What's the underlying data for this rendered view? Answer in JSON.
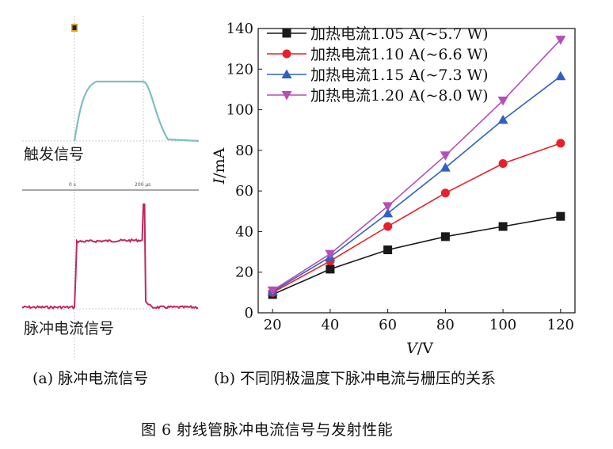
{
  "panel_a": {
    "trigger_label": "触发信号",
    "pulse_label": "脉冲电流信号",
    "time_zero": "0 s",
    "time_end": "200 µs",
    "caption": "(a) 脉冲电流信号",
    "colors": {
      "trigger_trace": "#7fbfbf",
      "pulse_trace": "#c0285a",
      "grid": "#bfbfbf"
    }
  },
  "panel_b": {
    "caption": "(b) 不同阴极温度下脉冲电流与栅压的关系"
  },
  "figure_caption": "图 6   射线管脉冲电流信号与发射性能",
  "chart_data": {
    "type": "line",
    "title": "",
    "xlabel_var": "V",
    "xlabel_unit": "/V",
    "ylabel_var": "I",
    "ylabel_unit": "/mA",
    "x": [
      20,
      40,
      60,
      80,
      100,
      120
    ],
    "xlim": [
      15,
      125
    ],
    "ylim": [
      0,
      140
    ],
    "xticks": [
      20,
      40,
      60,
      80,
      100,
      120
    ],
    "yticks": [
      0,
      20,
      40,
      60,
      80,
      100,
      120,
      140
    ],
    "legend_position": "top-left",
    "series": [
      {
        "name": "加热电流1.05 A(~5.7 W)",
        "color": "#1a1a1a",
        "marker": "square",
        "values": [
          9,
          21.5,
          31,
          37.5,
          42.5,
          47.5
        ]
      },
      {
        "name": "加热电流1.10 A(~6.6 W)",
        "color": "#e8202a",
        "marker": "circle",
        "values": [
          10,
          25.5,
          42.5,
          59,
          73.5,
          83.5
        ]
      },
      {
        "name": "加热电流1.15 A(~7.3 W)",
        "color": "#2f62c0",
        "marker": "triangle-up",
        "values": [
          10.5,
          27.5,
          49,
          71.5,
          95,
          116.5
        ]
      },
      {
        "name": "加热电流1.20 A(~8.0 W)",
        "color": "#b54fb8",
        "marker": "triangle-down",
        "values": [
          11,
          29,
          52.5,
          77.5,
          104.5,
          134.5
        ]
      }
    ]
  }
}
